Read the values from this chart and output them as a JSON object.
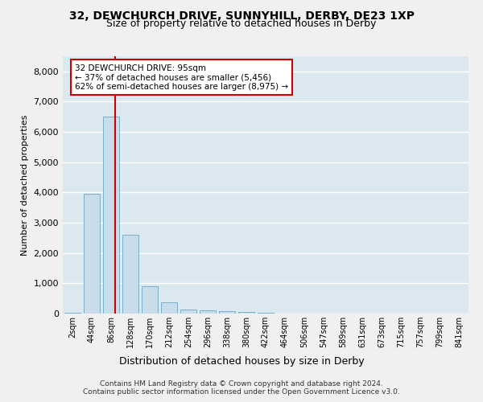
{
  "title_line1": "32, DEWCHURCH DRIVE, SUNNYHILL, DERBY, DE23 1XP",
  "title_line2": "Size of property relative to detached houses in Derby",
  "xlabel": "Distribution of detached houses by size in Derby",
  "ylabel": "Number of detached properties",
  "footnote1": "Contains HM Land Registry data © Crown copyright and database right 2024.",
  "footnote2": "Contains public sector information licensed under the Open Government Licence v3.0.",
  "annotation_title": "32 DEWCHURCH DRIVE: 95sqm",
  "annotation_line2": "← 37% of detached houses are smaller (5,456)",
  "annotation_line3": "62% of semi-detached houses are larger (8,975) →",
  "bar_labels": [
    "2sqm",
    "44sqm",
    "86sqm",
    "128sqm",
    "170sqm",
    "212sqm",
    "254sqm",
    "296sqm",
    "338sqm",
    "380sqm",
    "422sqm",
    "464sqm",
    "506sqm",
    "547sqm",
    "589sqm",
    "631sqm",
    "673sqm",
    "715sqm",
    "757sqm",
    "799sqm",
    "841sqm"
  ],
  "bar_values": [
    25,
    3950,
    6500,
    2600,
    900,
    380,
    145,
    100,
    70,
    40,
    20,
    5,
    3,
    2,
    1,
    1,
    0,
    0,
    0,
    0,
    0
  ],
  "bar_color": "#c9dcea",
  "bar_edge_color": "#7aafc8",
  "property_line_color": "#cc0000",
  "property_line_x": 2.2,
  "annotation_box_color": "#ffffff",
  "annotation_box_edge": "#cc0000",
  "ylim": [
    0,
    8500
  ],
  "fig_bg": "#f0f0f0",
  "plot_bg": "#dce8f0",
  "grid_color": "#ffffff",
  "title1_fontsize": 10,
  "title2_fontsize": 9
}
